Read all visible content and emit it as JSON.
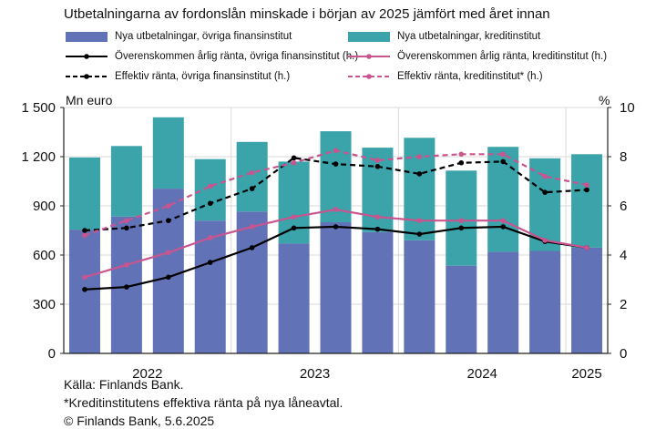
{
  "title": "Utbetalningarna av fordonslån minskade i början av 2025 jämfört med året innan",
  "legend": [
    {
      "label": "Nya utbetalningar, övriga finansinstitut",
      "kind": "bar",
      "color": "#6272b6"
    },
    {
      "label": "Nya utbetalningar, kreditinstitut",
      "kind": "bar",
      "color": "#3ba3aa"
    },
    {
      "label": "Överenskommen årlig ränta, övriga finansinstitut (h.)",
      "kind": "line",
      "color": "#000000"
    },
    {
      "label": "Överenskommen årlig ränta, kreditinstitut (h.)",
      "kind": "line",
      "color": "#c8558f"
    },
    {
      "label": "Effektiv ränta, övriga finansinstitut (h.)",
      "kind": "dashed",
      "color": "#000000"
    },
    {
      "label": "Effektiv ränta, kreditinstitut* (h.)",
      "kind": "dashed",
      "color": "#c8558f"
    }
  ],
  "left_unit": "Mn euro",
  "right_unit": "%",
  "footer": {
    "source": "Källa: Finlands Bank.",
    "note": "*Kreditinstitutens effektiva ränta på nya låneavtal.",
    "copyright": "© Finlands Bank, 5.6.2025"
  },
  "chart_data": {
    "type": "bar",
    "x_labels": [
      "2022",
      "2023",
      "2024",
      "2025"
    ],
    "periods": [
      "2022Q1",
      "2022Q2",
      "2022Q3",
      "2022Q4",
      "2023Q1",
      "2023Q2",
      "2023Q3",
      "2023Q4",
      "2024Q1",
      "2024Q2",
      "2024Q3",
      "2024Q4",
      "2025Q1"
    ],
    "y_left": {
      "ticks": [
        "0",
        "300",
        "600",
        "900",
        "1 200",
        "1 500"
      ],
      "min": 0,
      "max": 1500
    },
    "y_right": {
      "ticks": [
        "0",
        "2",
        "4",
        "6",
        "8",
        "10"
      ],
      "min": 0,
      "max": 10
    },
    "bars_stacked": [
      {
        "name": "Nya utbetalningar, övriga finansinstitut",
        "color": "#6272b6",
        "values": [
          755,
          835,
          1005,
          810,
          865,
          670,
          800,
          740,
          690,
          535,
          620,
          625,
          645
        ]
      },
      {
        "name": "Nya utbetalningar, kreditinstitut",
        "color": "#3ba3aa",
        "values": [
          440,
          430,
          435,
          375,
          425,
          500,
          555,
          515,
          625,
          580,
          640,
          565,
          570
        ]
      }
    ],
    "lines_right_axis": [
      {
        "name": "Överenskommen årlig ränta, övriga finansinstitut (h.)",
        "color": "#000000",
        "dash": false,
        "values": [
          2.6,
          2.7,
          3.1,
          3.7,
          4.3,
          5.1,
          5.15,
          5.05,
          4.85,
          5.1,
          5.15,
          4.55,
          4.3
        ]
      },
      {
        "name": "Överenskommen årlig ränta, kreditinstitut (h.)",
        "color": "#c8558f",
        "dash": false,
        "values": [
          3.1,
          3.6,
          4.1,
          4.7,
          5.15,
          5.55,
          5.85,
          5.55,
          5.4,
          5.4,
          5.4,
          4.6,
          4.3
        ]
      },
      {
        "name": "Effektiv ränta, övriga finansinstitut (h.)",
        "color": "#000000",
        "dash": true,
        "values": [
          5.0,
          5.1,
          5.4,
          6.1,
          6.7,
          7.95,
          7.7,
          7.6,
          7.3,
          7.75,
          7.8,
          6.55,
          6.65
        ]
      },
      {
        "name": "Effektiv ränta, kreditinstitut* (h.)",
        "color": "#c8558f",
        "dash": true,
        "values": [
          4.8,
          5.4,
          6.0,
          6.8,
          7.35,
          7.75,
          8.25,
          7.85,
          8.0,
          8.1,
          8.1,
          7.2,
          6.85
        ]
      }
    ]
  }
}
